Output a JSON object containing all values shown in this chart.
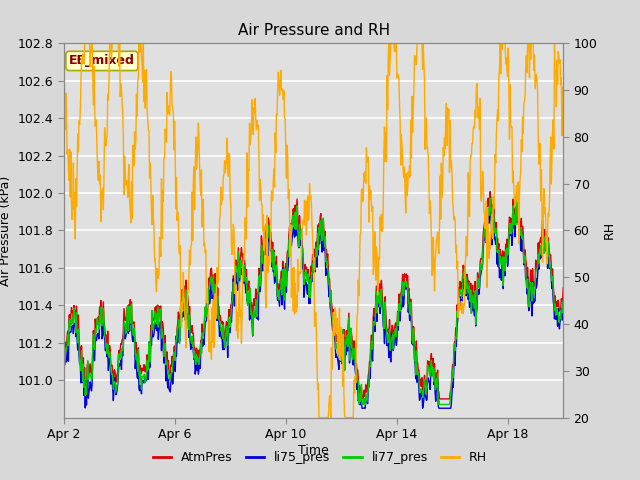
{
  "title": "Air Pressure and RH",
  "xlabel": "Time",
  "ylabel_left": "Air Pressure (kPa)",
  "ylabel_right": "RH",
  "ylim_left": [
    100.8,
    102.8
  ],
  "ylim_right": [
    20,
    100
  ],
  "xtick_labels": [
    "Apr 2",
    "Apr 6",
    "Apr 10",
    "Apr 14",
    "Apr 18"
  ],
  "yticks_left": [
    101.0,
    101.2,
    101.4,
    101.6,
    101.8,
    102.0,
    102.2,
    102.4,
    102.6,
    102.8
  ],
  "yticks_right": [
    20,
    30,
    40,
    50,
    60,
    70,
    80,
    90,
    100
  ],
  "fig_bg_color": "#d8d8d8",
  "plot_bg_color": "#e0e0e0",
  "annotation_text": "EE_mixed",
  "annotation_bg": "#ffffcc",
  "annotation_border": "#aaaa00",
  "annotation_text_color": "#880000",
  "line_colors": {
    "AtmPres": "#dd0000",
    "li75_pres": "#0000dd",
    "li77_pres": "#00cc00",
    "RH": "#ffaa00"
  },
  "legend_labels": [
    "AtmPres",
    "li75_pres",
    "li77_pres",
    "RH"
  ],
  "n_points": 800
}
